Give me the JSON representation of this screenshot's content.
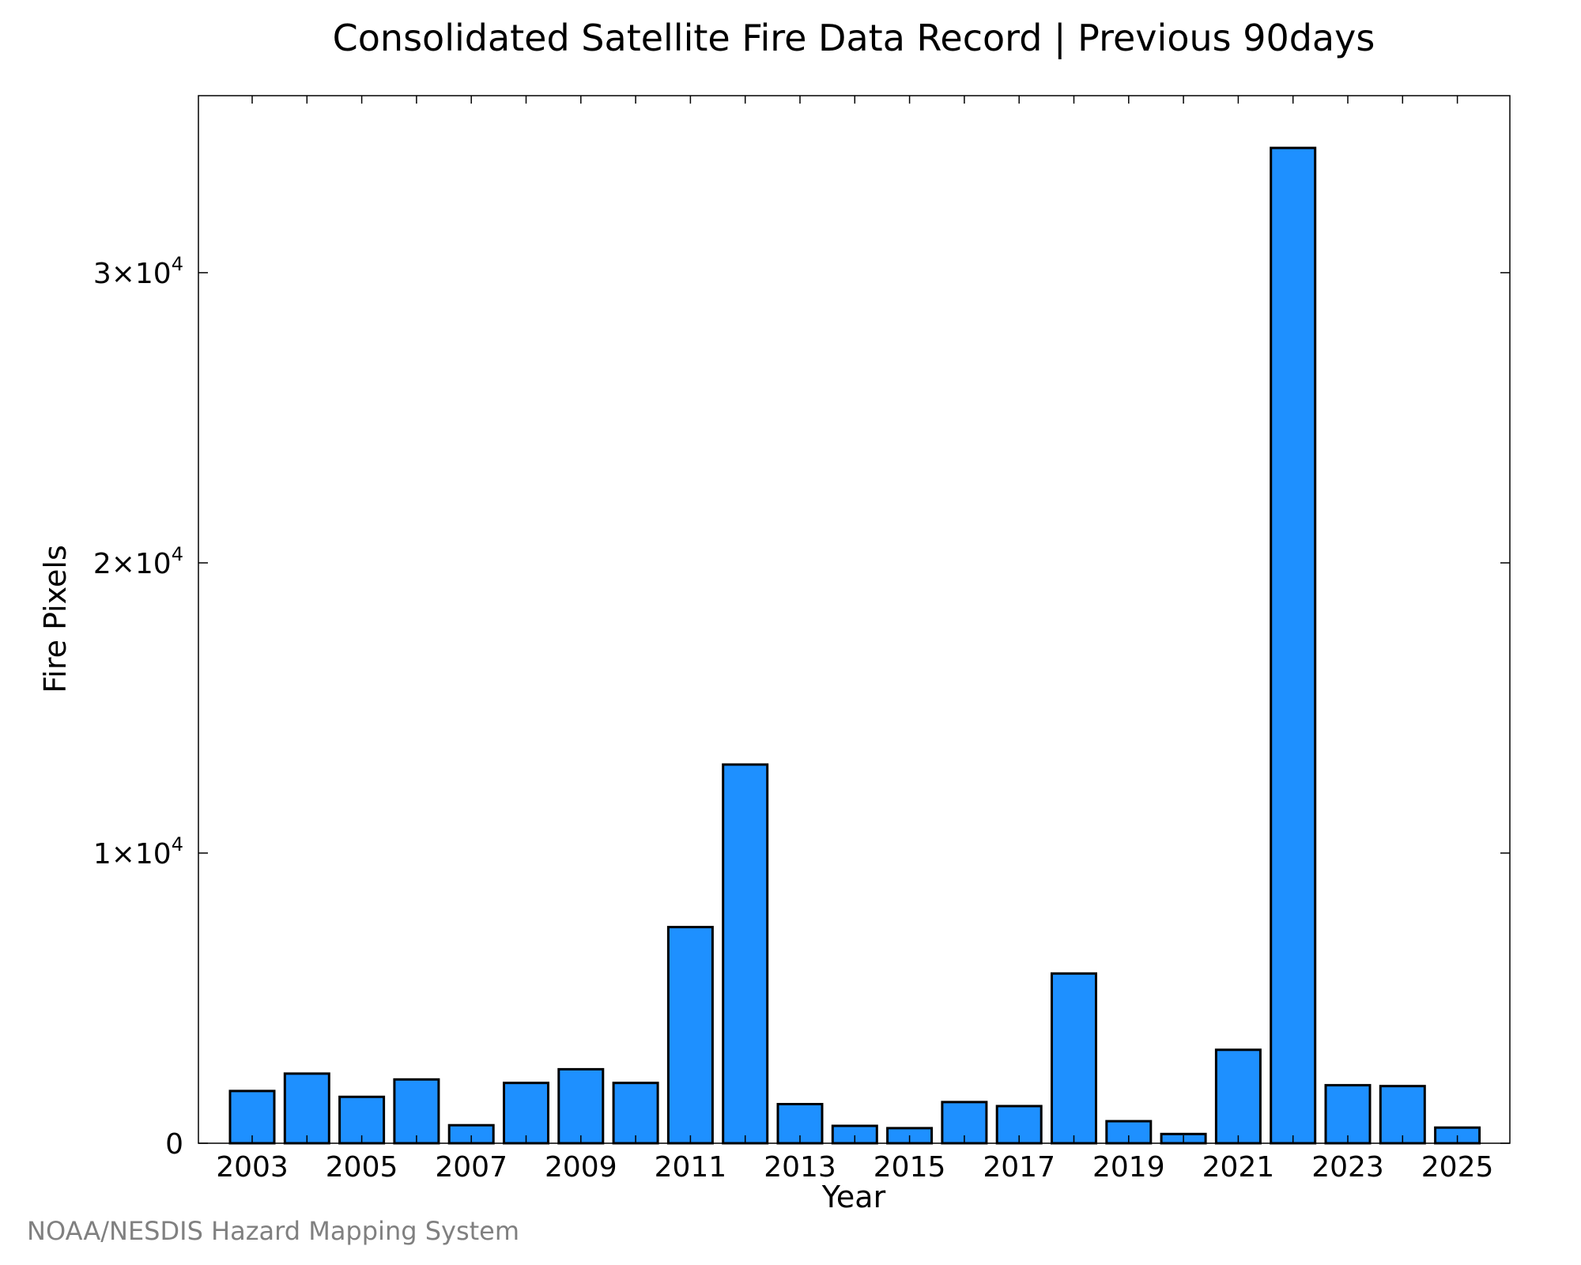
{
  "chart_data": {
    "type": "bar",
    "title": "Consolidated Satellite Fire Data Record | Previous 90days",
    "xlabel": "Year",
    "ylabel": "Fire Pixels",
    "categories": [
      "2003",
      "2004",
      "2005",
      "2006",
      "2007",
      "2008",
      "2009",
      "2010",
      "2011",
      "2012",
      "2013",
      "2014",
      "2015",
      "2016",
      "2017",
      "2018",
      "2019",
      "2020",
      "2021",
      "2022",
      "2023",
      "2024",
      "2025"
    ],
    "values": [
      1800,
      2400,
      1600,
      2200,
      620,
      2080,
      2550,
      2080,
      7450,
      13050,
      1350,
      600,
      520,
      1420,
      1280,
      5850,
      760,
      320,
      3220,
      34300,
      2000,
      1970,
      540
    ],
    "x_tick_labels": [
      "2003",
      "2005",
      "2007",
      "2009",
      "2011",
      "2013",
      "2015",
      "2017",
      "2019",
      "2021",
      "2023",
      "2025"
    ],
    "y_ticks": [
      {
        "value": 0,
        "mantissa": "0",
        "exponent": ""
      },
      {
        "value": 10000,
        "mantissa": "1×10",
        "exponent": "4"
      },
      {
        "value": 20000,
        "mantissa": "2×10",
        "exponent": "4"
      },
      {
        "value": 30000,
        "mantissa": "3×10",
        "exponent": "4"
      }
    ],
    "ylim": [
      0,
      36100
    ],
    "grid": false,
    "legend": "none",
    "colors": {
      "bar": "#1e90ff",
      "bar_edge": "#000000",
      "credit": "#808080"
    }
  },
  "credit": "NOAA/NESDIS Hazard Mapping System"
}
